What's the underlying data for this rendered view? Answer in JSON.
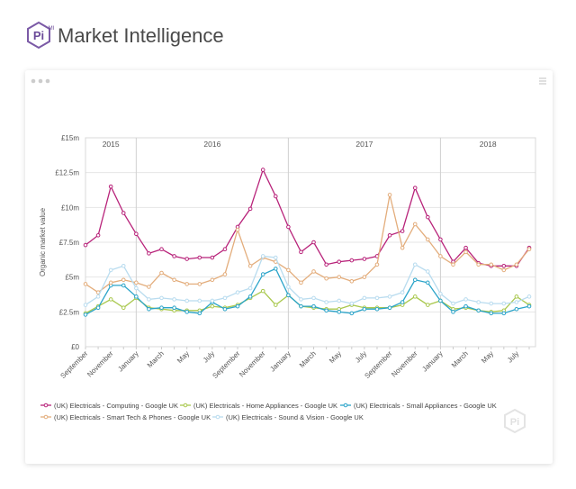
{
  "header": {
    "logo": "Pi",
    "badge": "MI",
    "title": "Market Intelligence"
  },
  "chart_data": {
    "type": "line",
    "y_label": "Organic market value",
    "years": [
      "2015",
      "2016",
      "2017",
      "2018"
    ],
    "categories": [
      "September",
      null,
      "November",
      null,
      "January",
      null,
      "March",
      null,
      "May",
      null,
      "July",
      null,
      "September",
      null,
      "November",
      null,
      "January",
      null,
      "March",
      null,
      "May",
      null,
      "July",
      null,
      "September",
      null,
      "November",
      null,
      "January",
      null,
      "March",
      null,
      "May",
      null,
      "July",
      null
    ],
    "ylim": [
      0,
      15
    ],
    "yticks": [
      {
        "value": 0,
        "label": "£0"
      },
      {
        "value": 2.5,
        "label": "£2.5m"
      },
      {
        "value": 5,
        "label": "£5m"
      },
      {
        "value": 7.5,
        "label": "£7.5m"
      },
      {
        "value": 10,
        "label": "£10m"
      },
      {
        "value": 12.5,
        "label": "£12.5m"
      },
      {
        "value": 15,
        "label": "£15m"
      }
    ],
    "grid": true,
    "legend": "bottom",
    "series": [
      {
        "name": "(UK) Electricals - Computing - Google UK",
        "color": "#b8237a",
        "values": [
          7.3,
          8.0,
          11.5,
          9.6,
          8.1,
          6.7,
          7.0,
          6.5,
          6.3,
          6.4,
          6.4,
          7.0,
          8.6,
          9.9,
          12.7,
          10.8,
          8.6,
          6.8,
          7.5,
          5.9,
          6.1,
          6.2,
          6.3,
          6.5,
          8.0,
          8.3,
          11.4,
          9.3,
          7.7,
          6.1,
          7.1,
          6.0,
          5.8,
          5.8,
          5.8,
          7.1
        ]
      },
      {
        "name": "(UK) Electricals - Home Appliances - Google UK",
        "color": "#a9c84e",
        "values": [
          2.4,
          2.9,
          3.4,
          2.8,
          3.5,
          2.8,
          2.7,
          2.6,
          2.6,
          2.6,
          2.9,
          2.8,
          3.0,
          3.5,
          4.0,
          3.0,
          3.7,
          2.9,
          2.8,
          2.7,
          2.7,
          3.0,
          2.8,
          2.8,
          2.8,
          3.0,
          3.6,
          3.0,
          3.3,
          2.7,
          2.8,
          2.6,
          2.5,
          2.6,
          3.6,
          3.0
        ]
      },
      {
        "name": "(UK) Electricals - Small Appliances - Google UK",
        "color": "#2ba4c9",
        "values": [
          2.3,
          2.8,
          4.4,
          4.4,
          3.6,
          2.7,
          2.8,
          2.8,
          2.5,
          2.4,
          3.2,
          2.7,
          2.9,
          3.6,
          5.2,
          5.6,
          3.7,
          2.9,
          2.9,
          2.6,
          2.5,
          2.4,
          2.7,
          2.7,
          2.8,
          3.2,
          4.8,
          4.6,
          3.3,
          2.5,
          2.9,
          2.6,
          2.4,
          2.4,
          2.7,
          2.9
        ]
      },
      {
        "name": "(UK) Electricals - Smart Tech & Phones - Google UK",
        "color": "#e3ad7c",
        "values": [
          4.5,
          3.9,
          4.6,
          4.8,
          4.6,
          4.3,
          5.3,
          4.8,
          4.5,
          4.5,
          4.8,
          5.2,
          8.4,
          5.8,
          6.4,
          6.1,
          5.5,
          4.6,
          5.4,
          4.9,
          5.0,
          4.7,
          5.0,
          5.9,
          10.9,
          7.1,
          8.8,
          7.7,
          6.5,
          5.9,
          6.8,
          5.9,
          5.9,
          5.5,
          5.9,
          7.0
        ]
      },
      {
        "name": "(UK) Electricals - Sound & Vision - Google UK",
        "color": "#b9dcef",
        "values": [
          3.0,
          3.6,
          5.5,
          5.8,
          4.2,
          3.4,
          3.5,
          3.4,
          3.3,
          3.3,
          3.3,
          3.5,
          3.9,
          4.2,
          6.5,
          6.4,
          4.3,
          3.4,
          3.5,
          3.2,
          3.3,
          3.1,
          3.5,
          3.5,
          3.6,
          3.9,
          5.9,
          5.4,
          3.8,
          3.1,
          3.4,
          3.2,
          3.1,
          3.1,
          3.2,
          3.6
        ]
      }
    ]
  }
}
